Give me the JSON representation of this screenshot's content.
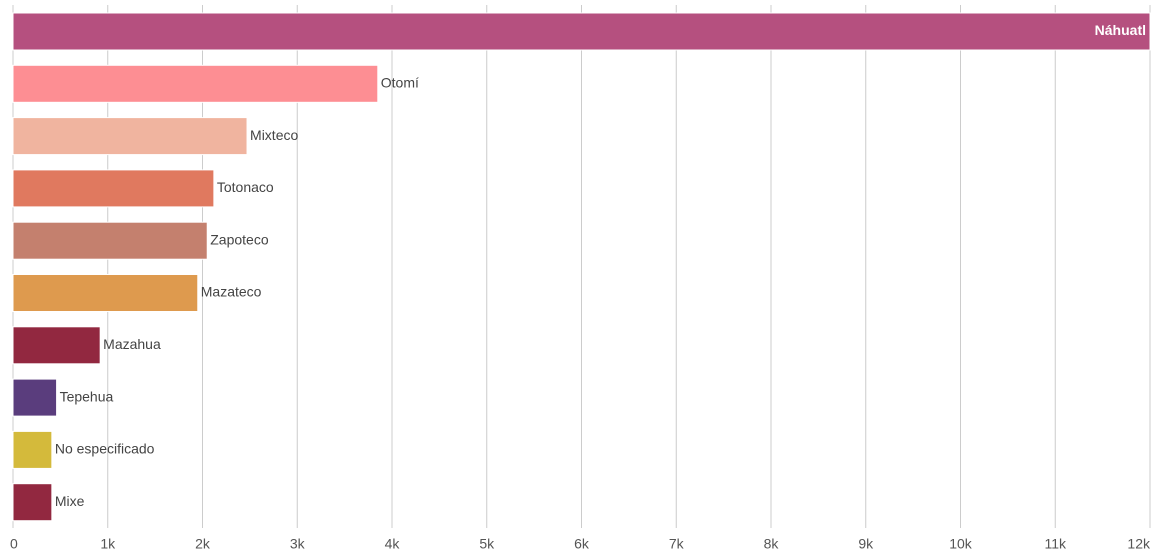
{
  "chart_data": {
    "type": "bar",
    "orientation": "horizontal",
    "categories": [
      "Náhuatl",
      "Otomí",
      "Mixteco",
      "Totonaco",
      "Zapoteco",
      "Mazateco",
      "Mazahua",
      "Tepehua",
      "No especificado",
      "Mixe"
    ],
    "values": [
      12000,
      3850,
      2470,
      2120,
      2050,
      1950,
      920,
      460,
      410,
      410
    ],
    "colors": [
      "#b5507f",
      "#fd8e93",
      "#f0b49f",
      "#e0795f",
      "#c4806e",
      "#de9a4e",
      "#922840",
      "#5a3d7d",
      "#d4ba3b",
      "#922840"
    ],
    "xlim": [
      0,
      12000
    ],
    "xticks": [
      0,
      {
        "value": 1000,
        "label": "1k"
      },
      {
        "value": 2000,
        "label": "2k"
      },
      {
        "value": 3000,
        "label": "3k"
      },
      {
        "value": 4000,
        "label": "4k"
      },
      {
        "value": 5000,
        "label": "5k"
      },
      {
        "value": 6000,
        "label": "6k"
      },
      {
        "value": 7000,
        "label": "7k"
      },
      {
        "value": 8000,
        "label": "8k"
      },
      {
        "value": 9000,
        "label": "9k"
      },
      {
        "value": 10000,
        "label": "10k"
      },
      {
        "value": 11000,
        "label": "11k"
      },
      {
        "value": 12000,
        "label": "12k"
      }
    ],
    "grid": true
  }
}
